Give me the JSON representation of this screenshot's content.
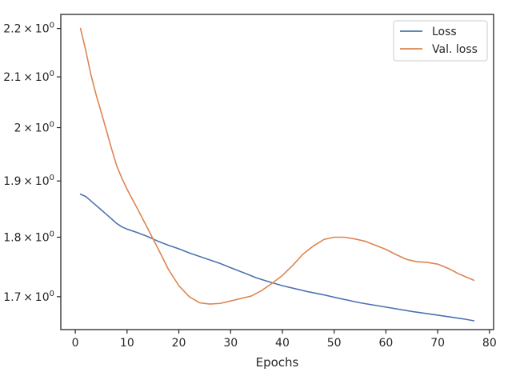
{
  "chart_data": {
    "type": "line",
    "title": "",
    "xlabel": "Epochs",
    "ylabel": "",
    "yscale": "log",
    "xlim": [
      -2.8,
      80.8
    ],
    "ylim": [
      1.647,
      2.23
    ],
    "xticks": [
      0,
      10,
      20,
      30,
      40,
      50,
      60,
      70,
      80
    ],
    "yticks": [
      {
        "value": 1.7,
        "label_base": "1.7",
        "label_exp": "0"
      },
      {
        "value": 1.8,
        "label_base": "1.8",
        "label_exp": "0"
      },
      {
        "value": 1.9,
        "label_base": "1.9",
        "label_exp": "0"
      },
      {
        "value": 2.0,
        "label_base": "2",
        "label_exp": "0"
      },
      {
        "value": 2.1,
        "label_base": "2.1",
        "label_exp": "0"
      },
      {
        "value": 2.2,
        "label_base": "2.2",
        "label_exp": "0"
      }
    ],
    "grid": false,
    "legend_position": "top-right",
    "series": [
      {
        "name": "Loss",
        "color": "#4c72b0",
        "x": [
          1,
          2,
          3,
          4,
          5,
          6,
          7,
          8,
          9,
          10,
          12,
          14,
          16,
          18,
          20,
          22,
          25,
          28,
          30,
          33,
          35,
          38,
          40,
          43,
          45,
          48,
          50,
          55,
          60,
          65,
          70,
          75,
          77
        ],
        "y": [
          1.876,
          1.872,
          1.864,
          1.856,
          1.848,
          1.84,
          1.832,
          1.824,
          1.818,
          1.814,
          1.808,
          1.801,
          1.793,
          1.786,
          1.78,
          1.773,
          1.764,
          1.755,
          1.748,
          1.738,
          1.731,
          1.723,
          1.718,
          1.712,
          1.708,
          1.703,
          1.699,
          1.69,
          1.683,
          1.676,
          1.67,
          1.664,
          1.661
        ]
      },
      {
        "name": "Val. loss",
        "color": "#dd8452",
        "x": [
          1,
          2,
          3,
          4,
          5,
          6,
          7,
          8,
          9,
          10,
          12,
          14,
          16,
          18,
          20,
          22,
          24,
          26,
          28,
          30,
          32,
          34,
          36,
          38,
          40,
          42,
          44,
          46,
          48,
          50,
          52,
          54,
          56,
          58,
          60,
          62,
          64,
          66,
          68,
          70,
          72,
          74,
          77
        ],
        "y": [
          2.2,
          2.155,
          2.105,
          2.065,
          2.03,
          1.995,
          1.96,
          1.928,
          1.905,
          1.885,
          1.85,
          1.815,
          1.78,
          1.745,
          1.718,
          1.7,
          1.69,
          1.688,
          1.689,
          1.693,
          1.697,
          1.701,
          1.71,
          1.722,
          1.735,
          1.752,
          1.771,
          1.785,
          1.796,
          1.8,
          1.8,
          1.797,
          1.793,
          1.786,
          1.779,
          1.77,
          1.762,
          1.758,
          1.757,
          1.754,
          1.747,
          1.738,
          1.727
        ]
      }
    ]
  }
}
